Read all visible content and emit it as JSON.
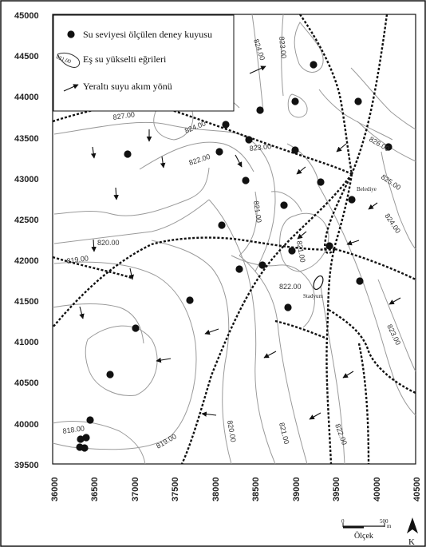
{
  "map": {
    "x_ticks": [
      "36000",
      "36500",
      "37000",
      "37500",
      "38000",
      "38500",
      "39000",
      "39500",
      "40000",
      "40500"
    ],
    "y_ticks": [
      "45000",
      "44500",
      "44000",
      "43500",
      "43000",
      "42500",
      "42000",
      "41500",
      "41000",
      "40500",
      "40000",
      "39500"
    ],
    "contour_labels": {
      "c824_top": "824.00",
      "c823_top": "823.00",
      "c827": "827.00",
      "c826_top": "826.00",
      "c824_mid": "824.00",
      "c823_mid": "823.00",
      "c822_mid": "822.00",
      "c825": "825.00",
      "c824_right": "824.00",
      "c821_mid": "821.00",
      "c820_left": "820.00",
      "c819_left": "819.00",
      "c821_center": "821.00",
      "c822_center": "822.00",
      "c823_right": "823.00",
      "c818": "818.00",
      "c819_bottom": "819.00",
      "c820_bottom": "820.00",
      "c821_bottom": "821.00",
      "c822_bottom": "822.00"
    },
    "place_labels": {
      "municipality": "Belediye",
      "stadium": "Stadyum"
    }
  },
  "legend": {
    "well_label": "Su seviyesi ölçülen deney kuyusu",
    "contour_label": "Eş su yükselti eğrileri",
    "flow_label": "Yeraltı suyu akım yönü",
    "sample_contour_value": "821.00"
  },
  "scale_bar": {
    "zero": "0",
    "max": "500",
    "unit": "m",
    "label": "Ölçek"
  },
  "north_arrow": {
    "label": "K"
  },
  "colors": {
    "wells": "#111111",
    "contours": "#9a9a9a",
    "roads": "#111111",
    "frame": "#111111"
  }
}
